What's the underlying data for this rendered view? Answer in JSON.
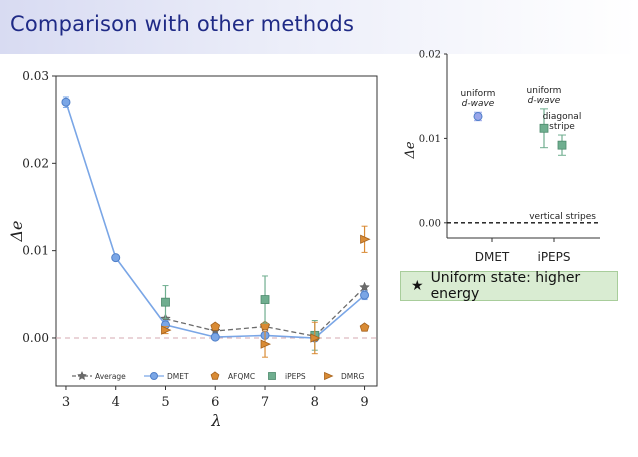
{
  "slide": {
    "title": "Comparison with other methods"
  },
  "callout": {
    "icon": "star-icon",
    "text": "Uniform state: higher energy"
  },
  "chart_data": [
    {
      "type": "line",
      "xlabel": "λ",
      "ylabel": "Δe",
      "xlim": [
        2.8,
        9.25
      ],
      "ylim": [
        -0.0055,
        0.03
      ],
      "x_ticks": [
        3,
        4,
        5,
        6,
        7,
        8,
        9
      ],
      "y_ticks": [
        0.0,
        0.01,
        0.02,
        0.03
      ],
      "y_tick_labels": [
        "0.00",
        "0.01",
        "0.02",
        "0.03"
      ],
      "reference_line": 0.0,
      "legend_position": "bottom",
      "series": [
        {
          "name": "Average",
          "color": "#6b6b6b",
          "marker": "star",
          "style": "dashed",
          "points": [
            [
              5,
              0.0022
            ],
            [
              6,
              0.0008
            ],
            [
              7,
              0.0013
            ],
            [
              8,
              0.0002
            ],
            [
              9,
              0.0058
            ]
          ]
        },
        {
          "name": "DMET",
          "color": "#7aa6e6",
          "marker": "circle",
          "style": "solid",
          "points": [
            [
              3,
              0.027
            ],
            [
              4,
              0.0092
            ],
            [
              5,
              0.0015
            ],
            [
              6,
              0.0001
            ],
            [
              7,
              0.0003
            ],
            [
              8,
              0.0
            ],
            [
              9,
              0.0049
            ]
          ],
          "err": [
            0.0006,
            0.0002,
            0.0005,
            0.0001,
            0.0002,
            0.0002,
            0.0005
          ]
        },
        {
          "name": "AFQMC",
          "color": "#d98b34",
          "marker": "pentagon",
          "style": "none",
          "points": [
            [
              6,
              0.0013
            ],
            [
              7,
              0.0014
            ],
            [
              8,
              0.0001
            ],
            [
              9,
              0.0012
            ]
          ]
        },
        {
          "name": "iPEPS",
          "color": "#6fae8f",
          "marker": "square",
          "style": "none",
          "points": [
            [
              5,
              0.0041
            ],
            [
              7,
              0.0044
            ],
            [
              8,
              0.0003
            ]
          ],
          "err": [
            0.0019,
            0.0027,
            0.0017
          ]
        },
        {
          "name": "DMRG",
          "color": "#d98b34",
          "marker": "triangle-right",
          "style": "none",
          "points": [
            [
              5,
              0.0009
            ],
            [
              7,
              -0.0007
            ],
            [
              8,
              0.0
            ],
            [
              9,
              0.0113
            ]
          ],
          "err": [
            0.0004,
            0.0015,
            0.0018,
            0.0015
          ]
        }
      ]
    },
    {
      "type": "scatter",
      "ylabel": "Δe",
      "categories": [
        "DMET",
        "iPEPS"
      ],
      "ylim": [
        -0.0018,
        0.02
      ],
      "y_ticks": [
        0.0,
        0.01,
        0.02
      ],
      "y_tick_labels": [
        "0.00",
        "0.01",
        "0.02"
      ],
      "reference_line": 0.0,
      "reference_label": "vertical stripes",
      "points": [
        {
          "category": "DMET",
          "offset": -0.35,
          "y": 0.0126,
          "err": 0.0005,
          "marker": "circle",
          "color": "#9aa6ea",
          "label": [
            "uniform",
            "d-wave"
          ]
        },
        {
          "category": "iPEPS",
          "offset": -0.25,
          "y": 0.0112,
          "err": 0.0023,
          "marker": "square",
          "color": "#6fae8f",
          "label": [
            "uniform",
            "d-wave"
          ]
        },
        {
          "category": "iPEPS",
          "offset": 0.2,
          "y": 0.0092,
          "err": 0.0012,
          "marker": "square",
          "color": "#6fae8f",
          "label": [
            "diagonal",
            "stripe"
          ]
        }
      ]
    }
  ]
}
